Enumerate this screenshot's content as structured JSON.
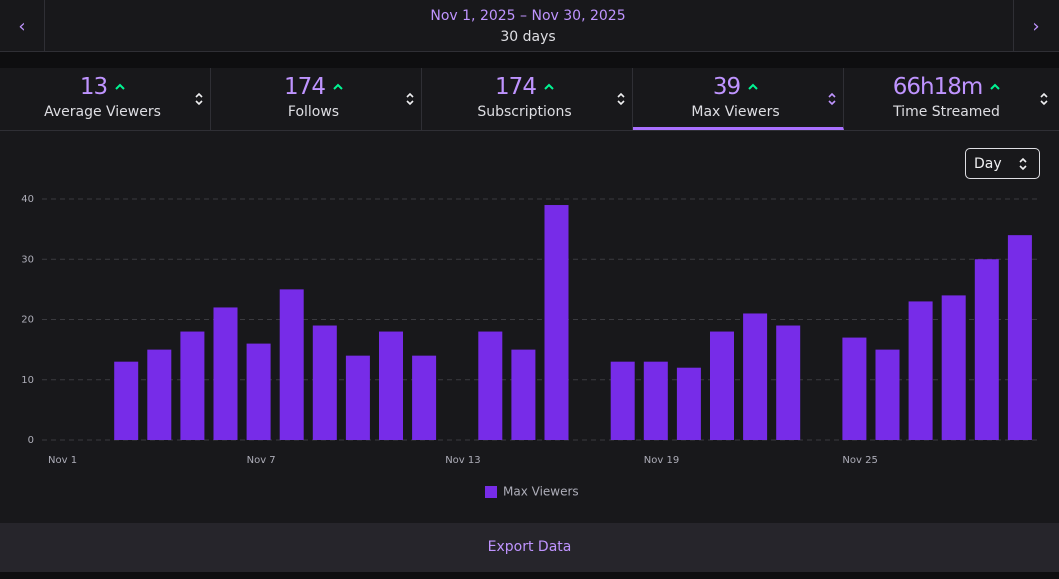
{
  "header": {
    "date_range": "Nov 1, 2025 – Nov 30, 2025",
    "duration": "30 days"
  },
  "stats": [
    {
      "value": 13,
      "label": "Average Viewers"
    },
    {
      "value": 174,
      "label": "Follows"
    },
    {
      "value": 174,
      "label": "Subscriptions"
    },
    {
      "value": 39,
      "label": "Max Viewers"
    },
    {
      "value": "66h18m",
      "label": "Time Streamed"
    }
  ],
  "interval": "Day",
  "export": "Export Data",
  "chart_data": {
    "type": "bar",
    "categories": [
      "Nov 1",
      null,
      null,
      null,
      null,
      null,
      "Nov 7",
      null,
      null,
      null,
      null,
      null,
      "Nov 13",
      null,
      null,
      null,
      null,
      null,
      "Nov 19",
      null,
      null,
      null,
      null,
      null,
      "Nov 25",
      null,
      null,
      null,
      null,
      null
    ],
    "series": [
      {
        "name": "Max Viewers",
        "color": "#772ce8",
        "values": [
          0,
          0,
          13,
          15,
          18,
          22,
          16,
          25,
          19,
          14,
          18,
          14,
          0,
          18,
          15,
          39,
          0,
          13,
          13,
          12,
          18,
          21,
          19,
          0,
          17,
          15,
          23,
          24,
          30,
          34
        ]
      }
    ],
    "ylim": [
      0,
      40
    ],
    "yticks": [
      0,
      10,
      20,
      30,
      40
    ],
    "grid": true
  }
}
